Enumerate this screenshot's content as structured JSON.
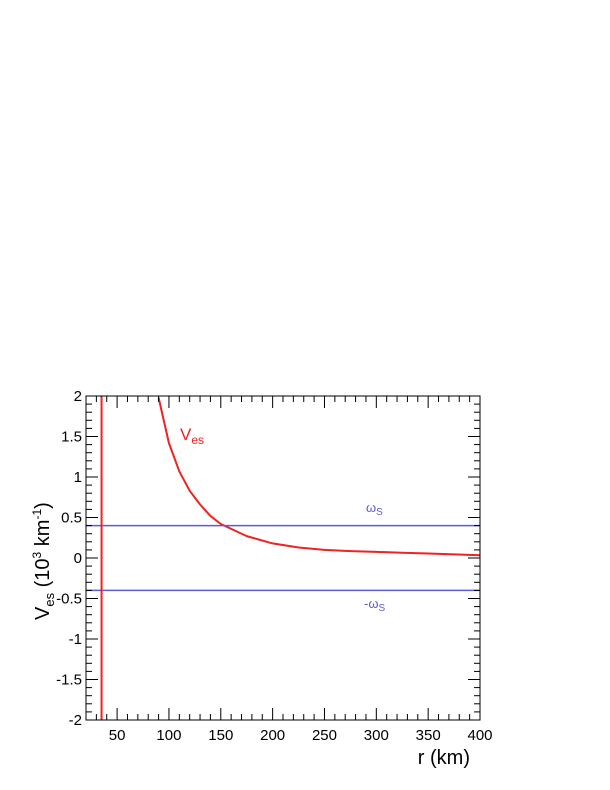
{
  "chart_data": {
    "type": "line",
    "xlabel": {
      "main": "r (km)"
    },
    "ylabel": {
      "v": "V",
      "sub": "es",
      "open": " (10",
      "exp1": "3",
      "unit": " km",
      "exp2": "-1",
      "close": ")"
    },
    "xlim": [
      20,
      400
    ],
    "ylim": [
      -2,
      2
    ],
    "x_ticks": [
      50,
      100,
      150,
      200,
      250,
      300,
      350,
      400
    ],
    "y_ticks": [
      -2,
      -1.5,
      -1,
      -0.5,
      0,
      0.5,
      1,
      1.5,
      2
    ],
    "y_tick_labels": [
      "-2",
      "-1.5",
      "-1",
      "-0.5",
      "0",
      "0.5",
      "1",
      "1.5",
      "2"
    ],
    "grid": false,
    "colors": {
      "ves": "#ee2222",
      "omega": "#5b5bd6"
    },
    "series": [
      {
        "name": "V_es",
        "label": {
          "main": "V",
          "sub": "es"
        },
        "x": [
          90,
          100,
          110,
          120,
          130,
          140,
          150,
          175,
          200,
          225,
          250,
          275,
          300,
          325,
          350,
          375,
          400
        ],
        "y": [
          1.98,
          1.42,
          1.07,
          0.83,
          0.66,
          0.52,
          0.42,
          0.27,
          0.18,
          0.13,
          0.1,
          0.085,
          0.075,
          0.065,
          0.055,
          0.045,
          0.035
        ]
      },
      {
        "name": "omega_S",
        "label": {
          "main": "ω",
          "sub": "S"
        },
        "x": [
          20,
          400
        ],
        "y": [
          0.4,
          0.4
        ]
      },
      {
        "name": "-omega_S",
        "label": {
          "main": "-ω",
          "sub": "S"
        },
        "x": [
          20,
          400
        ],
        "y": [
          -0.4,
          -0.4
        ]
      }
    ],
    "vertical_line": {
      "x": 35
    }
  }
}
